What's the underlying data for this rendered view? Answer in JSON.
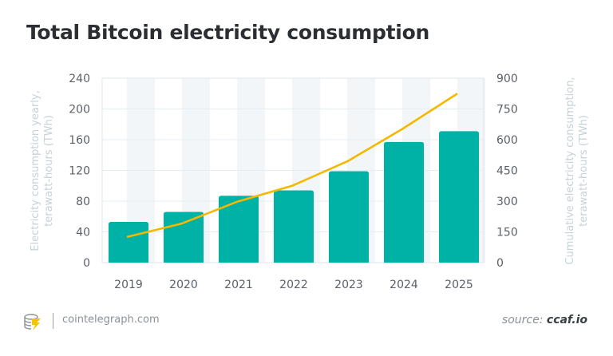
{
  "chart_data": {
    "type": "bar+line",
    "title": "Total Bitcoin electricity consumption",
    "categories": [
      "2019",
      "2020",
      "2021",
      "2022",
      "2023",
      "2024",
      "2025"
    ],
    "series": [
      {
        "type": "bar",
        "axis": "left",
        "values": [
          53,
          66,
          87,
          94,
          119,
          157,
          171
        ],
        "color": "#00b2a6"
      },
      {
        "type": "line",
        "axis": "right",
        "values": [
          125,
          191,
          297,
          375,
          494,
          652,
          825
        ],
        "color": "#f5b800"
      }
    ],
    "ylabel_left": "Electricity consumption yearly, terawatt-hours (TWh)",
    "ylabel_right": "Cumulative electricity consumption, terawatt-hours (TWh)",
    "ylim_left": [
      0,
      240
    ],
    "yticks_left": [
      "0",
      "40",
      "80",
      "120",
      "160",
      "200",
      "240"
    ],
    "ylim_right": [
      0,
      900
    ],
    "yticks_right": [
      "0",
      "150",
      "300",
      "450",
      "600",
      "750",
      "900"
    ],
    "grid": true
  },
  "footer": {
    "site": "cointelegraph.com",
    "source_prefix": "source: ",
    "source_name": "ccaf.io"
  }
}
